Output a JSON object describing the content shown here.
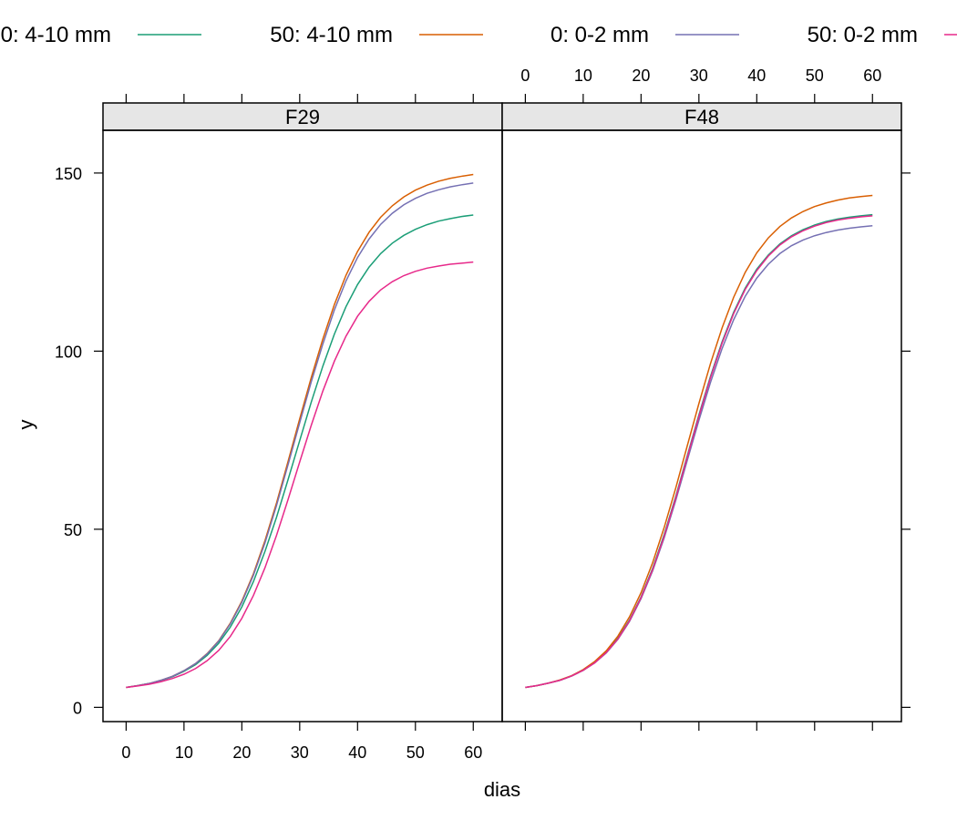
{
  "chart_data": {
    "type": "line",
    "xlabel": "dias",
    "ylabel": "y",
    "xlim": [
      -4,
      65
    ],
    "ylim": [
      -4,
      162
    ],
    "x_ticks": [
      0,
      10,
      20,
      30,
      40,
      50,
      60
    ],
    "y_ticks": [
      0,
      50,
      100,
      150
    ],
    "grid": false,
    "legend_position": "top",
    "legend": [
      {
        "label": "0: 4-10 mm",
        "color": "#1b9e77"
      },
      {
        "label": "50: 4-10 mm",
        "color": "#d95f02"
      },
      {
        "label": "0: 0-2 mm",
        "color": "#7570b3"
      },
      {
        "label": "50: 0-2 mm",
        "color": "#e7298a"
      }
    ],
    "x": [
      0,
      2,
      4,
      6,
      8,
      10,
      12,
      14,
      16,
      18,
      20,
      22,
      24,
      26,
      28,
      30,
      32,
      34,
      36,
      38,
      40,
      42,
      44,
      46,
      48,
      50,
      52,
      54,
      56,
      58,
      60
    ],
    "panels": [
      {
        "strip": "F29",
        "series": [
          {
            "name": "0: 4-10 mm",
            "color": "#1b9e77",
            "values": [
              5.6,
              6.1,
              6.7,
              7.5,
              8.6,
              10.1,
              12.0,
              14.6,
              18.0,
              22.5,
              28.2,
              35.3,
              43.8,
              53.4,
              64.0,
              74.9,
              85.7,
              95.8,
              104.8,
              112.5,
              118.7,
              123.6,
              127.4,
              130.3,
              132.5,
              134.2,
              135.5,
              136.5,
              137.2,
              137.8,
              138.2
            ]
          },
          {
            "name": "50: 4-10 mm",
            "color": "#d95f02",
            "values": [
              5.6,
              6.1,
              6.7,
              7.6,
              8.7,
              10.3,
              12.3,
              15.1,
              18.7,
              23.6,
              29.8,
              37.5,
              46.8,
              57.4,
              69.1,
              81.0,
              92.6,
              103.4,
              113.1,
              121.3,
              128.0,
              133.4,
              137.6,
              140.8,
              143.3,
              145.2,
              146.6,
              147.7,
              148.5,
              149.1,
              149.6
            ]
          },
          {
            "name": "0: 0-2 mm",
            "color": "#7570b3",
            "values": [
              5.6,
              6.1,
              6.7,
              7.6,
              8.7,
              10.3,
              12.3,
              15.0,
              18.6,
              23.4,
              29.5,
              37.1,
              46.2,
              56.7,
              68.2,
              79.9,
              91.4,
              102.0,
              111.6,
              119.7,
              126.3,
              131.5,
              135.6,
              138.7,
              141.1,
              142.9,
              144.3,
              145.3,
              146.1,
              146.7,
              147.2
            ]
          },
          {
            "name": "50: 0-2 mm",
            "color": "#e7298a",
            "values": [
              5.6,
              6.0,
              6.5,
              7.2,
              8.1,
              9.3,
              10.9,
              13.1,
              16.0,
              19.9,
              25.0,
              31.4,
              39.2,
              48.3,
              58.4,
              68.9,
              79.2,
              88.8,
              97.2,
              104.2,
              109.8,
              114.0,
              117.2,
              119.5,
              121.2,
              122.4,
              123.3,
              123.9,
              124.4,
              124.7,
              125.0
            ]
          }
        ]
      },
      {
        "strip": "F48",
        "series": [
          {
            "name": "0: 4-10 mm",
            "color": "#1b9e77",
            "values": [
              5.6,
              6.1,
              6.8,
              7.6,
              8.8,
              10.4,
              12.6,
              15.5,
              19.4,
              24.5,
              31.0,
              39.0,
              48.5,
              59.2,
              70.7,
              82.1,
              92.9,
              102.6,
              110.9,
              117.7,
              123.0,
              127.0,
              130.1,
              132.4,
              134.1,
              135.4,
              136.4,
              137.1,
              137.6,
              138.0,
              138.3
            ]
          },
          {
            "name": "50: 4-10 mm",
            "color": "#d95f02",
            "values": [
              5.6,
              6.1,
              6.8,
              7.7,
              8.9,
              10.6,
              12.9,
              15.9,
              20.0,
              25.4,
              32.2,
              40.6,
              50.5,
              61.6,
              73.5,
              85.3,
              96.5,
              106.5,
              115.1,
              122.1,
              127.6,
              131.8,
              135.0,
              137.4,
              139.2,
              140.6,
              141.6,
              142.4,
              143.0,
              143.4,
              143.7
            ]
          },
          {
            "name": "0: 0-2 mm",
            "color": "#7570b3",
            "values": [
              5.6,
              6.1,
              6.8,
              7.6,
              8.8,
              10.4,
              12.5,
              15.3,
              19.1,
              24.1,
              30.5,
              38.3,
              47.6,
              58.1,
              69.4,
              80.6,
              91.2,
              100.7,
              108.8,
              115.4,
              120.5,
              124.4,
              127.4,
              129.6,
              131.2,
              132.4,
              133.3,
              134.0,
              134.5,
              134.9,
              135.2
            ]
          },
          {
            "name": "50: 0-2 mm",
            "color": "#e7298a",
            "values": [
              5.6,
              6.1,
              6.8,
              7.6,
              8.8,
              10.4,
              12.5,
              15.4,
              19.2,
              24.3,
              30.8,
              38.7,
              48.1,
              58.8,
              70.3,
              81.7,
              92.5,
              102.2,
              110.5,
              117.3,
              122.6,
              126.7,
              129.8,
              132.1,
              133.8,
              135.1,
              136.1,
              136.8,
              137.3,
              137.7,
              138.0
            ]
          }
        ]
      }
    ]
  }
}
